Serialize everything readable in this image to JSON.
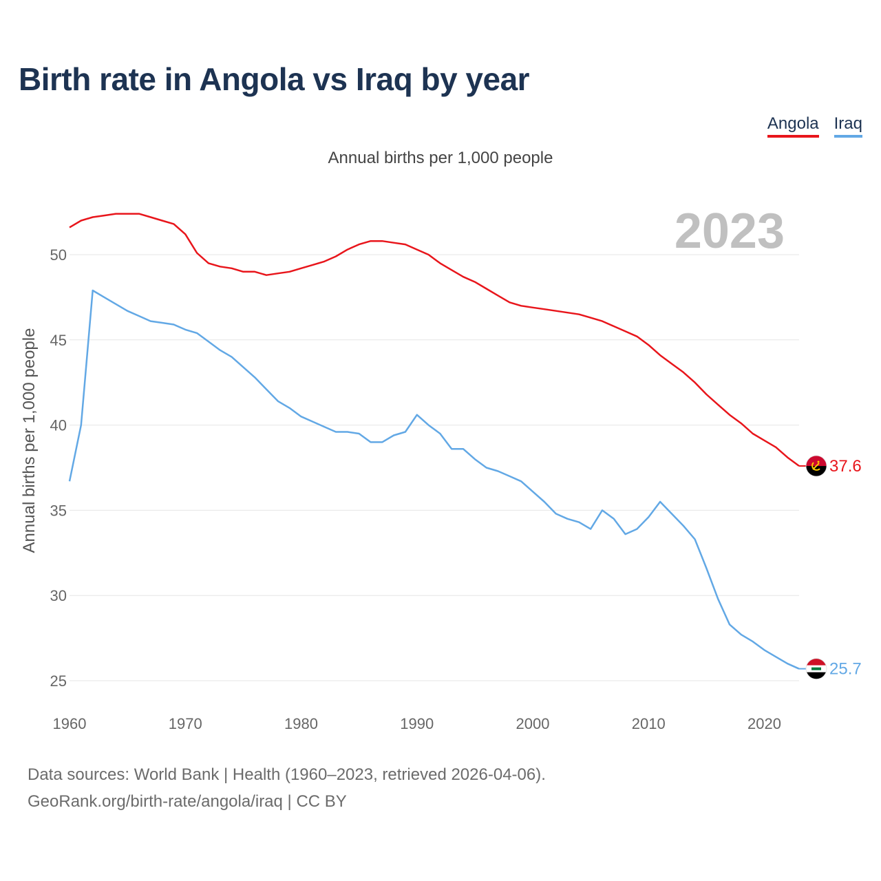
{
  "title": "Birth rate in Angola vs Iraq by year",
  "subtitle": "Annual births per 1,000 people",
  "footer": {
    "line1": "Data sources: World Bank | Health (1960–2023, retrieved 2026-04-06).",
    "line2": "GeoRank.org/birth-rate/angola/iraq | CC BY"
  },
  "colors": {
    "angola": "#e8151b",
    "iraq": "#62a8e5",
    "title": "#1d3352",
    "grid": "#e6e6e6",
    "tick": "#666666",
    "year_label": "#c0c0c0"
  },
  "chart_data": {
    "type": "line",
    "title": "Birth rate in Angola vs Iraq by year",
    "xlabel": "",
    "ylabel": "Annual births per 1,000 people",
    "xlim": [
      1960,
      2023
    ],
    "ylim": [
      24,
      53
    ],
    "x_ticks": [
      1960,
      1970,
      1980,
      1990,
      2000,
      2010,
      2020
    ],
    "y_ticks": [
      25,
      30,
      35,
      40,
      45,
      50
    ],
    "year_label": "2023",
    "grid": true,
    "legend": "top-right",
    "x": [
      1960,
      1961,
      1962,
      1963,
      1964,
      1965,
      1966,
      1967,
      1968,
      1969,
      1970,
      1971,
      1972,
      1973,
      1974,
      1975,
      1976,
      1977,
      1978,
      1979,
      1980,
      1981,
      1982,
      1983,
      1984,
      1985,
      1986,
      1987,
      1988,
      1989,
      1990,
      1991,
      1992,
      1993,
      1994,
      1995,
      1996,
      1997,
      1998,
      1999,
      2000,
      2001,
      2002,
      2003,
      2004,
      2005,
      2006,
      2007,
      2008,
      2009,
      2010,
      2011,
      2012,
      2013,
      2014,
      2015,
      2016,
      2017,
      2018,
      2019,
      2020,
      2021,
      2022,
      2023
    ],
    "series": [
      {
        "name": "Angola",
        "color_key": "angola",
        "end_label": "37.6",
        "flag": "angola-flag-icon",
        "values": [
          51.6,
          52.0,
          52.2,
          52.3,
          52.4,
          52.4,
          52.4,
          52.2,
          52.0,
          51.8,
          51.2,
          50.1,
          49.5,
          49.3,
          49.2,
          49.0,
          49.0,
          48.8,
          48.9,
          49.0,
          49.2,
          49.4,
          49.6,
          49.9,
          50.3,
          50.6,
          50.8,
          50.8,
          50.7,
          50.6,
          50.3,
          50.0,
          49.5,
          49.1,
          48.7,
          48.4,
          48.0,
          47.6,
          47.2,
          47.0,
          46.9,
          46.8,
          46.7,
          46.6,
          46.5,
          46.3,
          46.1,
          45.8,
          45.5,
          45.2,
          44.7,
          44.1,
          43.6,
          43.1,
          42.5,
          41.8,
          41.2,
          40.6,
          40.1,
          39.5,
          39.1,
          38.7,
          38.1,
          37.6
        ]
      },
      {
        "name": "Iraq",
        "color_key": "iraq",
        "end_label": "25.7",
        "flag": "iraq-flag-icon",
        "values": [
          36.7,
          40.0,
          47.9,
          47.5,
          47.1,
          46.7,
          46.4,
          46.1,
          46.0,
          45.9,
          45.6,
          45.4,
          44.9,
          44.4,
          44.0,
          43.4,
          42.8,
          42.1,
          41.4,
          41.0,
          40.5,
          40.2,
          39.9,
          39.6,
          39.6,
          39.5,
          39.0,
          39.0,
          39.4,
          39.6,
          40.6,
          40.0,
          39.5,
          38.6,
          38.6,
          38.0,
          37.5,
          37.3,
          37.0,
          36.7,
          36.1,
          35.5,
          34.8,
          34.5,
          34.3,
          33.9,
          35.0,
          34.5,
          33.6,
          33.9,
          34.6,
          35.5,
          34.8,
          34.1,
          33.3,
          31.6,
          29.8,
          28.3,
          27.7,
          27.3,
          26.8,
          26.4,
          26.0,
          25.7
        ]
      }
    ]
  }
}
